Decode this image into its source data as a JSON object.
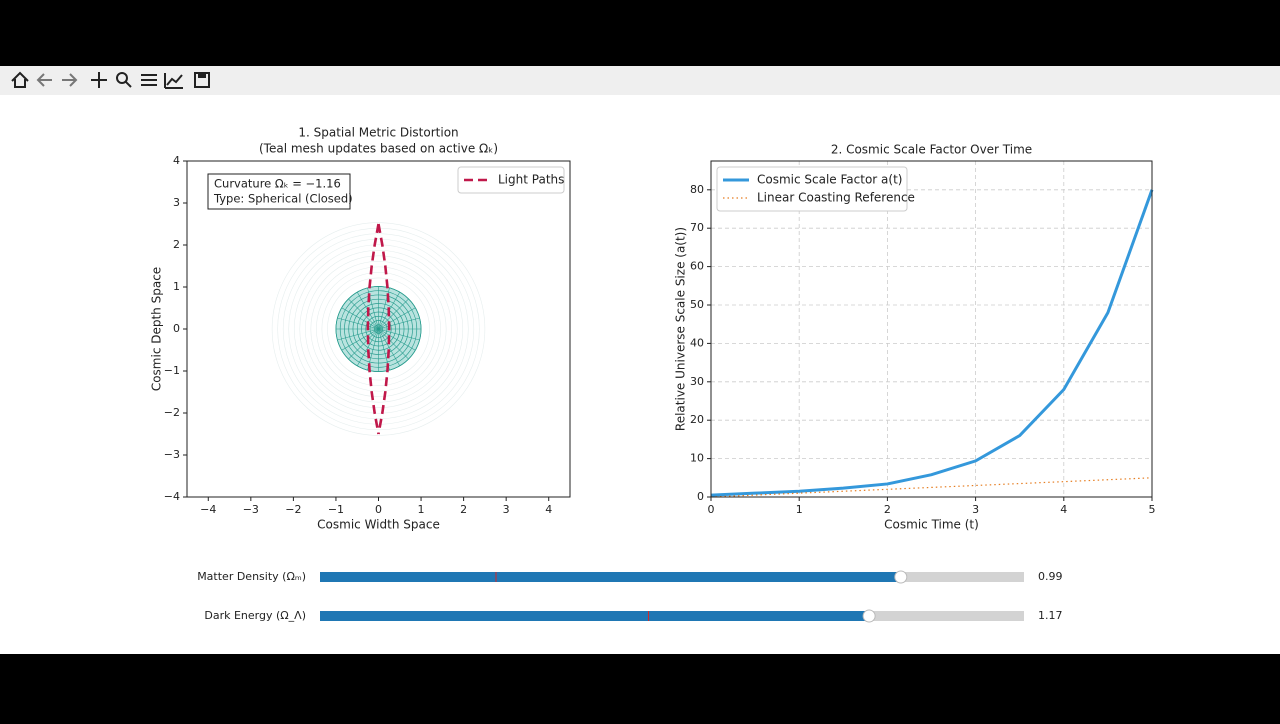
{
  "chart_data": [
    {
      "type": "line",
      "title": "1. Spatial Metric Distortion",
      "subtitle": "(Teal mesh updates based on active Ωₖ)",
      "xlabel": "Cosmic Width Space",
      "ylabel": "Cosmic Depth Space",
      "xlim": [
        -4.5,
        4.5
      ],
      "ylim": [
        -4,
        4
      ],
      "xticks": [
        {
          "value": -4,
          "label": "−4"
        },
        {
          "value": -3,
          "label": "−3"
        },
        {
          "value": -2,
          "label": "−2"
        },
        {
          "value": -1,
          "label": "−1"
        },
        0,
        1,
        2,
        3,
        4
      ],
      "yticks": [
        {
          "value": -4,
          "label": "−4"
        },
        {
          "value": -3,
          "label": "−3"
        },
        {
          "value": -2,
          "label": "−2"
        },
        {
          "value": -1,
          "label": "−1"
        },
        0,
        1,
        2,
        3,
        4
      ],
      "grid": false,
      "legend": "upper right",
      "annotation": [
        "Curvature Ωₖ = −1.16",
        "Type: Spherical (Closed)"
      ],
      "series": [
        {
          "name": "Light Paths",
          "color": "#c0184a",
          "style": "dashed",
          "x": [
            0,
            -0.09,
            -0.16,
            -0.21,
            -0.24,
            -0.25,
            -0.24,
            -0.21,
            -0.16,
            -0.09,
            0,
            null,
            0,
            0.09,
            0.16,
            0.21,
            0.24,
            0.25,
            0.24,
            0.21,
            0.16,
            0.09,
            0
          ],
          "y": [
            2.5,
            2,
            1.5,
            1,
            0.5,
            0,
            -0.5,
            -1,
            -1.5,
            -2,
            -2.5,
            null,
            2.5,
            2,
            1.5,
            1,
            0.5,
            0,
            -0.5,
            -1,
            -1.5,
            -2,
            -2.5
          ]
        }
      ]
    },
    {
      "type": "line",
      "title": "2. Cosmic Scale Factor Over Time",
      "xlabel": "Cosmic Time (t)",
      "ylabel": "Relative Universe Scale Size (a(t))",
      "x": [
        0,
        0.5,
        1,
        1.5,
        2,
        2.5,
        3,
        3.5,
        4,
        4.5,
        5
      ],
      "xlim": [
        0,
        5
      ],
      "ylim": [
        0,
        87.5
      ],
      "xticks": [
        0,
        1,
        2,
        3,
        4,
        5
      ],
      "yticks": [
        0,
        10,
        20,
        30,
        40,
        50,
        60,
        70,
        80
      ],
      "grid": true,
      "legend": "upper left",
      "series": [
        {
          "name": "Cosmic Scale Factor a(t)",
          "color": "#3498db",
          "style": "solid",
          "values": [
            0.5,
            1,
            1.5,
            2.3,
            3.4,
            5.8,
            9.4,
            16,
            28,
            48,
            80
          ]
        },
        {
          "name": "Linear Coasting Reference",
          "color": "#e67e22",
          "style": "dotted",
          "values": [
            0,
            0.5,
            1,
            1.5,
            2,
            2.5,
            3,
            3.5,
            4,
            4.5,
            5
          ]
        }
      ]
    }
  ],
  "sliders": [
    {
      "label": "Matter Density (Ωₘ)",
      "valmin": 0,
      "valmax": 1.2,
      "init": 0.3,
      "value": 0.99
    },
    {
      "label": "Dark Energy (Ω_Λ)",
      "valmin": 0,
      "valmax": 1.5,
      "init": 0.7,
      "value": 1.17
    }
  ]
}
